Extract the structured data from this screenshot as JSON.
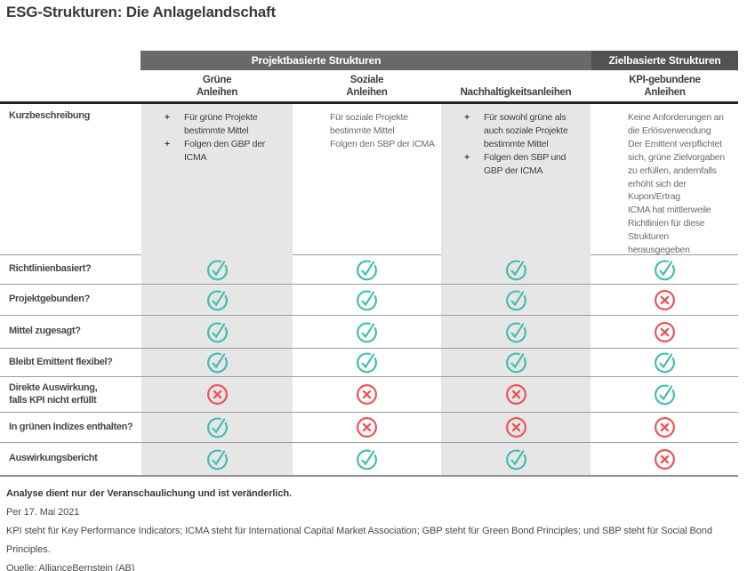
{
  "title": "ESG-Strukturen: Die Anlagelandschaft",
  "colors": {
    "check_teal": "#41beac",
    "cross_red": "#ee5257",
    "band_project_gray": "#696969",
    "band_target_gray": "#525252",
    "cell_gray": "#e6e6e6",
    "cell_white": "#ffffff"
  },
  "table": {
    "group_headers": [
      {
        "label": "Projektbasierte Strukturen",
        "span": 3
      },
      {
        "label": "Zielbasierte Strukturen",
        "span": 1
      }
    ],
    "columns": [
      {
        "lines": [
          "Grüne",
          "Anleihen"
        ]
      },
      {
        "lines": [
          "Soziale",
          "Anleihen"
        ]
      },
      {
        "lines": [
          "Nachhaltigkeitsanleihen"
        ]
      },
      {
        "lines": [
          "KPI-gebundene",
          "Anleihen"
        ]
      }
    ],
    "description": {
      "label": "Kurzbeschreibung",
      "cells": [
        {
          "marker": "+",
          "items": [
            "Für grüne Projekte bestimmte Mittel",
            "Folgen den GBP der ICMA"
          ]
        },
        {
          "marker": "",
          "items": [
            "Für soziale Projekte bestimmte Mittel",
            "Folgen den SBP der ICMA"
          ]
        },
        {
          "marker": "+",
          "items": [
            "Für sowohl grüne als auch soziale Projekte bestimmte Mittel",
            "Folgen den SBP und GBP der ICMA"
          ]
        },
        {
          "marker": "",
          "items": [
            "Keine Anforderungen an die Erlösverwendung",
            "Der Emittent verpflichtet sich, grüne Zielvorgaben zu erfüllen, andernfalls erhöht sich der Kupon/Ertrag",
            "ICMA hat mittlerweile Richtlinien für diese Strukturen herausgegeben"
          ]
        }
      ]
    },
    "rows": [
      {
        "label": "Richtlinienbasiert?",
        "values": [
          "check",
          "check",
          "check",
          "check"
        ]
      },
      {
        "label": "Projektgebunden?",
        "values": [
          "check",
          "check",
          "check",
          "cross"
        ]
      },
      {
        "label": "Mittel zugesagt?",
        "values": [
          "check",
          "check",
          "check",
          "cross"
        ]
      },
      {
        "label": "Bleibt Emittent flexibel?",
        "values": [
          "check",
          "check",
          "check",
          "check"
        ]
      },
      {
        "label": "Direkte Auswirkung,\nfalls KPI nicht erfüllt",
        "values": [
          "cross",
          "cross",
          "cross",
          "check"
        ]
      },
      {
        "label": "In grünen Indizes enthalten?",
        "values": [
          "check",
          "cross",
          "cross",
          "cross"
        ]
      },
      {
        "label": "Auswirkungsbericht",
        "values": [
          "check",
          "check",
          "check",
          "cross"
        ]
      }
    ]
  },
  "footer": {
    "disclaimer": "Analyse dient nur der Veranschaulichung und ist veränderlich.",
    "as_of": "Per 17. Mai 2021",
    "definitions": "KPI steht für Key Performance Indicators; ICMA steht für International Capital Market Association; GBP steht für Green Bond Principles; und SBP steht für Social Bond Principles.",
    "source": "Quelle: AllianceBernstein (AB)"
  },
  "chart_data": {
    "type": "table",
    "title": "ESG-Strukturen: Die Anlagelandschaft",
    "column_groups": [
      {
        "label": "Projektbasierte Strukturen",
        "columns": [
          "Grüne Anleihen",
          "Soziale Anleihen",
          "Nachhaltigkeitsanleihen"
        ]
      },
      {
        "label": "Zielbasierte Strukturen",
        "columns": [
          "KPI-gebundene Anleihen"
        ]
      }
    ],
    "descriptions": {
      "Grüne Anleihen": [
        "Für grüne Projekte bestimmte Mittel",
        "Folgen den GBP der ICMA"
      ],
      "Soziale Anleihen": [
        "Für soziale Projekte bestimmte Mittel",
        "Folgen den SBP der ICMA"
      ],
      "Nachhaltigkeitsanleihen": [
        "Für sowohl grüne als auch soziale Projekte bestimmte Mittel",
        "Folgen den SBP und GBP der ICMA"
      ],
      "KPI-gebundene Anleihen": [
        "Keine Anforderungen an die Erlösverwendung",
        "Der Emittent verpflichtet sich, grüne Zielvorgaben zu erfüllen, andernfalls erhöht sich der Kupon/Ertrag",
        "ICMA hat mittlerweile Richtlinien für diese Strukturen herausgegeben"
      ]
    },
    "rows": [
      {
        "label": "Richtlinienbasiert?",
        "values": [
          "✓",
          "✓",
          "✓",
          "✓"
        ]
      },
      {
        "label": "Projektgebunden?",
        "values": [
          "✓",
          "✓",
          "✓",
          "✗"
        ]
      },
      {
        "label": "Mittel zugesagt?",
        "values": [
          "✓",
          "✓",
          "✓",
          "✗"
        ]
      },
      {
        "label": "Bleibt Emittent flexibel?",
        "values": [
          "✓",
          "✓",
          "✓",
          "✓"
        ]
      },
      {
        "label": "Direkte Auswirkung, falls KPI nicht erfüllt",
        "values": [
          "✗",
          "✗",
          "✗",
          "✓"
        ]
      },
      {
        "label": "In grünen Indizes enthalten?",
        "values": [
          "✓",
          "✗",
          "✗",
          "✗"
        ]
      },
      {
        "label": "Auswirkungsbericht",
        "values": [
          "✓",
          "✓",
          "✓",
          "✗"
        ]
      }
    ],
    "notes": [
      "Analyse dient nur der Veranschaulichung und ist veränderlich.",
      "Per 17. Mai 2021",
      "KPI steht für Key Performance Indicators; ICMA steht für International Capital Market Association; GBP steht für Green Bond Principles; und SBP steht für Social Bond Principles.",
      "Quelle: AllianceBernstein (AB)"
    ]
  }
}
